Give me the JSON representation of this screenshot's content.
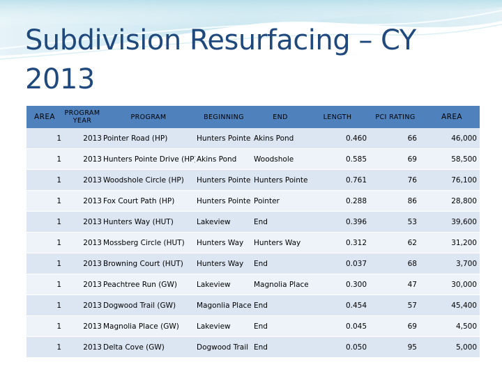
{
  "slide": {
    "title": "Subdivision Resurfacing – CY 2013"
  },
  "table": {
    "headers": {
      "area": "AREA",
      "program_year": "PROGRAM YEAR",
      "program": "PROGRAM",
      "beginning": "BEGINNING",
      "end": "END",
      "length": "LENGTH",
      "pci_rating": "PCI RATING",
      "area2": "AREA"
    },
    "rows": [
      {
        "area": "1",
        "year": "2013",
        "program": "Pointer Road (HP)",
        "beginning": "Hunters Pointe",
        "end": "Akins Pond",
        "length": "0.460",
        "pci": "66",
        "area2": "46,000"
      },
      {
        "area": "1",
        "year": "2013",
        "program": "Hunters Pointe Drive (HP)",
        "beginning": "Akins Pond",
        "end": "Woodshole",
        "length": "0.585",
        "pci": "69",
        "area2": "58,500"
      },
      {
        "area": "1",
        "year": "2013",
        "program": "Woodshole Circle (HP)",
        "beginning": "Hunters Pointe",
        "end": "Hunters Pointe",
        "length": "0.761",
        "pci": "76",
        "area2": "76,100"
      },
      {
        "area": "1",
        "year": "2013",
        "program": "Fox Court Path (HP)",
        "beginning": "Hunters Pointe",
        "end": "Pointer",
        "length": "0.288",
        "pci": "86",
        "area2": "28,800"
      },
      {
        "area": "1",
        "year": "2013",
        "program": "Hunters Way (HUT)",
        "beginning": "Lakeview",
        "end": "End",
        "length": "0.396",
        "pci": "53",
        "area2": "39,600"
      },
      {
        "area": "1",
        "year": "2013",
        "program": "Mossberg Circle (HUT)",
        "beginning": "Hunters Way",
        "end": "Hunters Way",
        "length": "0.312",
        "pci": "62",
        "area2": "31,200"
      },
      {
        "area": "1",
        "year": "2013",
        "program": "Browning Court (HUT)",
        "beginning": "Hunters Way",
        "end": "End",
        "length": "0.037",
        "pci": "68",
        "area2": "3,700"
      },
      {
        "area": "1",
        "year": "2013",
        "program": "Peachtree Run (GW)",
        "beginning": "Lakeview",
        "end": "Magnolia Place",
        "length": "0.300",
        "pci": "47",
        "area2": "30,000"
      },
      {
        "area": "1",
        "year": "2013",
        "program": "Dogwood Trail (GW)",
        "beginning": "Magonlia Place",
        "end": "End",
        "length": "0.454",
        "pci": "57",
        "area2": "45,400"
      },
      {
        "area": "1",
        "year": "2013",
        "program": "Magnolia Place (GW)",
        "beginning": "Lakeview",
        "end": "End",
        "length": "0.045",
        "pci": "69",
        "area2": "4,500"
      },
      {
        "area": "1",
        "year": "2013",
        "program": "Delta Cove (GW)",
        "beginning": "Dogwood Trail",
        "end": "End",
        "length": "0.050",
        "pci": "95",
        "area2": "5,000"
      }
    ]
  },
  "theme": {
    "header_fill": "#4f81bd",
    "row_odd": "#dce6f2",
    "row_even": "#eef3f9",
    "title_color": "#1f497d"
  }
}
